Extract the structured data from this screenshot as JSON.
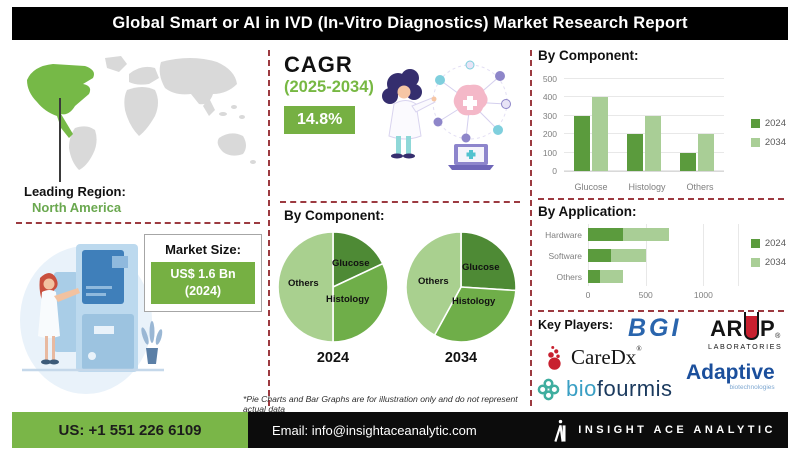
{
  "title": "Global Smart or AI in IVD (In-Vitro Diagnostics) Market Research Report",
  "sections": {
    "leading_region": {
      "label": "Leading Region:",
      "value": "North America"
    },
    "cagr": {
      "label": "CAGR",
      "period": "(2025-2034)",
      "value": "14.8%"
    },
    "market_size": {
      "label": "Market Size:",
      "value": "US$ 1.6 Bn",
      "year": "(2024)"
    },
    "pie_block": {
      "heading": "By Component:"
    },
    "key_players": {
      "heading": "Key Players:",
      "logos": {
        "bgi": {
          "text": "BGI"
        },
        "arup": {
          "pre": "AR",
          "post": "P",
          "reg": "®",
          "sub": "LABORATORIES"
        },
        "caredx": {
          "text": "CareDx",
          "reg": "®"
        },
        "adaptive": {
          "text": "Adaptive",
          "sub": "biotechnologies"
        },
        "biofourmis": {
          "pre": "bio",
          "post": "fourmis"
        }
      }
    }
  },
  "footnote": "*Pie Charts and Bar Graphs are for illustration only and do not represent actual data",
  "footer": {
    "phone": "US: +1 551 226 6109",
    "email": "Email: info@insightaceanalytic.com",
    "brand": "INSIGHT ACE ANALYTIC"
  },
  "colors": {
    "accent_green": "#76b043",
    "map_highlight": "#76b947",
    "map_land": "#d9d9d9",
    "dashed_border": "#9c3a40",
    "bar_2024": "#5b9b3d",
    "bar_2034": "#a9ce96",
    "pie_glucose": "#4e8a35",
    "pie_histology": "#6fae49",
    "pie_others": "#a9d08f",
    "footer_green": "#7ab648",
    "title_bg": "#000000"
  },
  "chart_data": [
    {
      "id": "component-bar",
      "type": "bar",
      "title": "By Component:",
      "categories": [
        "Glucose",
        "Histology",
        "Others"
      ],
      "series": [
        {
          "name": "2024",
          "color": "#5b9b3d",
          "values": [
            300,
            200,
            100
          ]
        },
        {
          "name": "2034",
          "color": "#a9ce96",
          "values": [
            400,
            300,
            200
          ]
        }
      ],
      "ylim": [
        0,
        500
      ],
      "ytick_step": 100,
      "grid": true,
      "legend_position": "right"
    },
    {
      "id": "component-pie-2024",
      "type": "pie",
      "year_label": "2024",
      "slices": [
        {
          "label": "Glucose",
          "value": 18,
          "color": "#4e8a35"
        },
        {
          "label": "Histology",
          "value": 32,
          "color": "#6fae49"
        },
        {
          "label": "Others",
          "value": 50,
          "color": "#a9d08f"
        }
      ]
    },
    {
      "id": "component-pie-2034",
      "type": "pie",
      "year_label": "2034",
      "slices": [
        {
          "label": "Glucose",
          "value": 26,
          "color": "#4e8a35"
        },
        {
          "label": "Histology",
          "value": 32,
          "color": "#6fae49"
        },
        {
          "label": "Others",
          "value": 42,
          "color": "#a9d08f"
        }
      ]
    },
    {
      "id": "application-bar",
      "type": "bar",
      "orientation": "horizontal",
      "stacked": true,
      "title": "By Application:",
      "categories": [
        "Hardware",
        "Software",
        "Others"
      ],
      "series": [
        {
          "name": "2024",
          "color": "#5b9b3d",
          "values": [
            300,
            200,
            100
          ]
        },
        {
          "name": "2034",
          "color": "#a9ce96",
          "values": [
            400,
            300,
            200
          ]
        }
      ],
      "xlim": [
        0,
        1300
      ],
      "xticks": [
        0,
        500,
        1000
      ],
      "grid": true,
      "legend_position": "right"
    }
  ]
}
